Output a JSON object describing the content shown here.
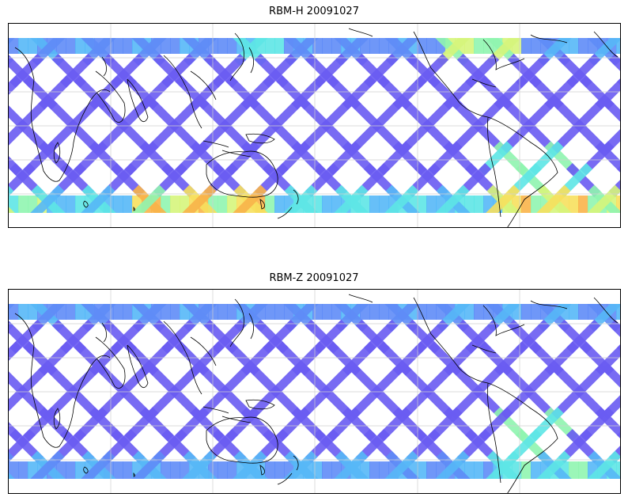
{
  "panels": [
    {
      "title": "RBM-H 20091027",
      "variant": "H"
    },
    {
      "title": "RBM-Z 20091027",
      "variant": "Z"
    }
  ],
  "colormap": [
    "#6a5cf2",
    "#5f8cf7",
    "#57b8f7",
    "#5ee6e6",
    "#90f5b0",
    "#d6f57c",
    "#f7e05e",
    "#f9b44a"
  ],
  "map": {
    "projection": "equirectangular",
    "grid_on": true
  }
}
